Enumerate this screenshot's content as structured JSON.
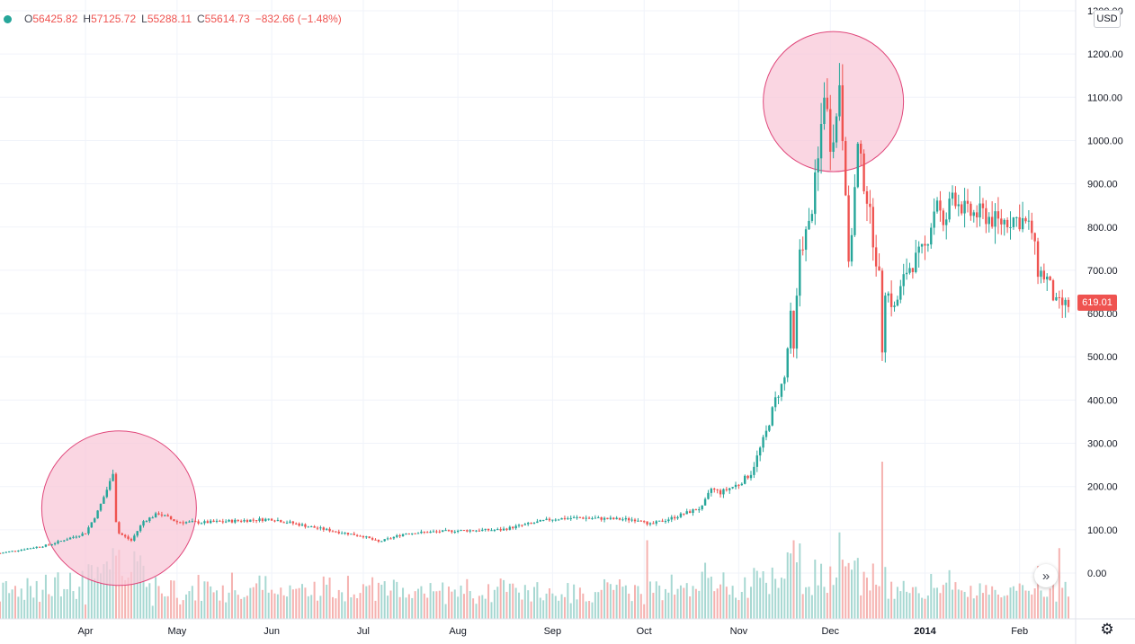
{
  "legend": {
    "open_label": "O",
    "open_value": "56425.82",
    "high_label": "H",
    "high_value": "57125.72",
    "low_label": "L",
    "low_value": "55288.11",
    "close_label": "C",
    "close_value": "55614.73",
    "change": "−832.66 (−1.48%)"
  },
  "currency": "USD",
  "last_price_label": "619.01",
  "colors": {
    "up": "#26a69a",
    "down": "#ef5350",
    "volume_up": "#a7d8d2",
    "volume_down": "#f5b2b0",
    "highlight_fill": "#f8c8d8",
    "highlight_stroke": "#e0467a"
  },
  "icons": {
    "go_to_realtime": "double-chevron-right-icon",
    "settings": "gear-icon"
  },
  "chart_data": {
    "type": "candlestick",
    "title": "",
    "xlabel": "",
    "ylabel": "",
    "ylim": [
      -35,
      1300
    ],
    "y_ticks": [
      "1300.00",
      "1200.00",
      "1100.00",
      "1000.00",
      "900.00",
      "800.00",
      "700.00",
      "600.00",
      "500.00",
      "400.00",
      "300.00",
      "200.00",
      "100.00",
      "0.00"
    ],
    "x_tick_labels": [
      "Apr",
      "May",
      "Jun",
      "Jul",
      "Aug",
      "Sep",
      "Oct",
      "Nov",
      "Dec",
      "2014",
      "Feb"
    ],
    "x_tick_dates": [
      "2013-04-01",
      "2013-05-01",
      "2013-06-01",
      "2013-07-01",
      "2013-08-01",
      "2013-09-01",
      "2013-10-01",
      "2013-11-01",
      "2013-12-01",
      "2014-01-01",
      "2014-02-01"
    ],
    "x_range": [
      "2013-03-04",
      "2014-02-17"
    ],
    "grid": true,
    "price_path": [
      [
        "2013-03-04",
        46
      ],
      [
        "2013-03-20",
        65
      ],
      [
        "2013-04-01",
        93
      ],
      [
        "2013-04-05",
        142
      ],
      [
        "2013-04-09",
        210
      ],
      [
        "2013-04-10",
        235
      ],
      [
        "2013-04-11",
        120
      ],
      [
        "2013-04-12",
        92
      ],
      [
        "2013-04-16",
        75
      ],
      [
        "2013-04-20",
        120
      ],
      [
        "2013-04-25",
        138
      ],
      [
        "2013-05-01",
        118
      ],
      [
        "2013-05-10",
        117
      ],
      [
        "2013-06-01",
        125
      ],
      [
        "2013-06-15",
        105
      ],
      [
        "2013-07-01",
        85
      ],
      [
        "2013-07-06",
        72
      ],
      [
        "2013-07-15",
        92
      ],
      [
        "2013-08-01",
        98
      ],
      [
        "2013-08-15",
        100
      ],
      [
        "2013-09-01",
        125
      ],
      [
        "2013-09-10",
        128
      ],
      [
        "2013-09-20",
        125
      ],
      [
        "2013-10-01",
        123
      ],
      [
        "2013-10-02",
        110
      ],
      [
        "2013-10-10",
        127
      ],
      [
        "2013-10-20",
        152
      ],
      [
        "2013-10-23",
        195
      ],
      [
        "2013-10-26",
        186
      ],
      [
        "2013-11-01",
        206
      ],
      [
        "2013-11-05",
        231
      ],
      [
        "2013-11-10",
        325
      ],
      [
        "2013-11-13",
        400
      ],
      [
        "2013-11-16",
        450
      ],
      [
        "2013-11-18",
        590
      ],
      [
        "2013-11-19",
        510
      ],
      [
        "2013-11-21",
        750
      ],
      [
        "2013-11-24",
        800
      ],
      [
        "2013-11-27",
        950
      ],
      [
        "2013-11-29",
        1120
      ],
      [
        "2013-12-01",
        1000
      ],
      [
        "2013-12-03",
        1050
      ],
      [
        "2013-12-04",
        1140
      ],
      [
        "2013-12-06",
        900
      ],
      [
        "2013-12-07",
        700
      ],
      [
        "2013-12-10",
        980
      ],
      [
        "2013-12-13",
        870
      ],
      [
        "2013-12-17",
        680
      ],
      [
        "2013-12-18",
        520
      ],
      [
        "2013-12-19",
        660
      ],
      [
        "2013-12-22",
        610
      ],
      [
        "2013-12-26",
        700
      ],
      [
        "2014-01-01",
        750
      ],
      [
        "2014-01-05",
        870
      ],
      [
        "2014-01-07",
        790
      ],
      [
        "2014-01-10",
        880
      ],
      [
        "2014-01-15",
        830
      ],
      [
        "2014-01-20",
        830
      ],
      [
        "2014-01-25",
        810
      ],
      [
        "2014-01-30",
        820
      ],
      [
        "2014-02-02",
        815
      ],
      [
        "2014-02-05",
        790
      ],
      [
        "2014-02-07",
        700
      ],
      [
        "2014-02-10",
        680
      ],
      [
        "2014-02-13",
        620
      ],
      [
        "2014-02-17",
        619
      ]
    ],
    "volume_spikes": [
      [
        "2013-04-10",
        0.45
      ],
      [
        "2013-10-02",
        0.5
      ],
      [
        "2013-11-19",
        0.5
      ],
      [
        "2013-11-21",
        0.48
      ],
      [
        "2013-12-04",
        0.55
      ],
      [
        "2013-12-18",
        1.0
      ],
      [
        "2014-02-14",
        0.45
      ]
    ],
    "annotations": [
      {
        "type": "circle",
        "center_date": "2013-04-12",
        "center_value": 150
      },
      {
        "type": "circle",
        "center_date": "2013-12-02",
        "center_value": 1090
      }
    ]
  }
}
